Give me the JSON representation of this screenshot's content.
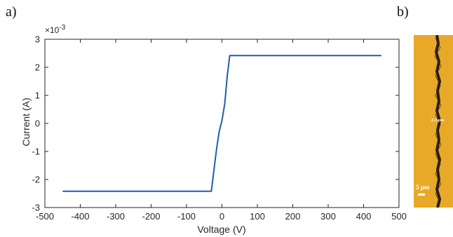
{
  "panels": {
    "a_label": "a)",
    "b_label": "b)"
  },
  "chart_data": {
    "type": "line",
    "title": "",
    "xlabel": "Voltage (V)",
    "ylabel": "Current (A)",
    "y_exponent_label": "×10",
    "y_exponent_power": "-3",
    "xlim": [
      -500,
      500
    ],
    "ylim": [
      -3,
      3
    ],
    "xticks": [
      "-500",
      "-400",
      "-300",
      "-200",
      "-100",
      "0",
      "100",
      "200",
      "300",
      "400",
      "500"
    ],
    "yticks": [
      "-3",
      "-2",
      "-1",
      "0",
      "1",
      "2",
      "3"
    ],
    "grid": false,
    "line_color": "#1f5fa8",
    "series": [
      {
        "x": [
          -450,
          -30,
          -22,
          -15,
          -8,
          0,
          8,
          15,
          22,
          450
        ],
        "y_e3": [
          -2.42,
          -2.42,
          -1.6,
          -0.9,
          -0.3,
          0.1,
          0.7,
          1.7,
          2.42,
          2.42
        ]
      }
    ]
  },
  "micrograph": {
    "width_annotation": "2-3 μm",
    "scale_bar_label": "5 μm",
    "background_color": "#e8a928",
    "line_color": "#2a1f10"
  }
}
